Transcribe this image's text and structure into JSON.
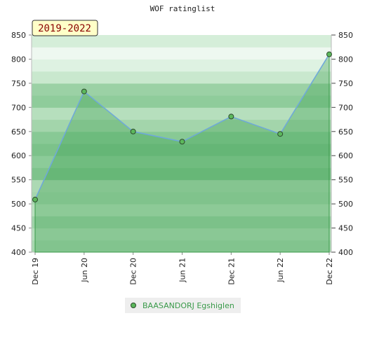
{
  "chart_data": {
    "type": "line",
    "title": "WOF ratinglist",
    "badge": "2019-2022",
    "categories": [
      "Dec 19",
      "Jun 20",
      "Dec 20",
      "Jun 21",
      "Dec 21",
      "Jun 22",
      "Dec 22"
    ],
    "series": [
      {
        "name": "BAASANDORJ Egshiglen",
        "color": "#5cb85c",
        "values": [
          509,
          733,
          650,
          629,
          681,
          645,
          810
        ]
      }
    ],
    "ylim": [
      400,
      850
    ],
    "yticks": [
      400,
      450,
      500,
      550,
      600,
      650,
      700,
      750,
      800,
      850
    ],
    "y2lim": [
      400,
      850
    ],
    "y2ticks": [
      400,
      450,
      500,
      550,
      600,
      650,
      700,
      750,
      800,
      850
    ]
  }
}
